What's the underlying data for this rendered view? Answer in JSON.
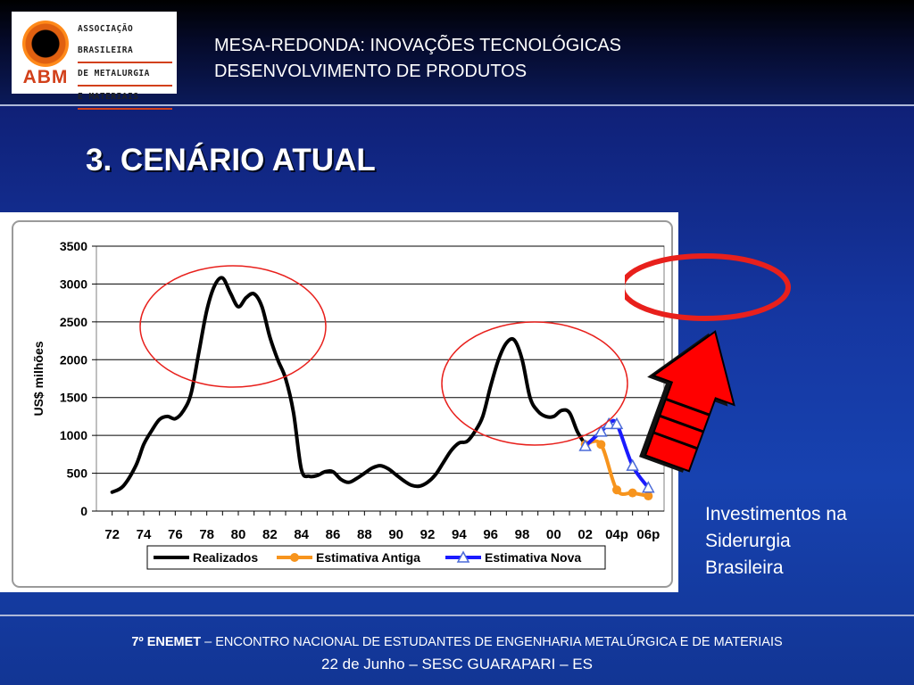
{
  "logo": {
    "abm": "ABM",
    "line1": "ASSOCIAÇÃO BRASILEIRA",
    "line2": "DE METALURGIA",
    "line3": "E MATERIAIS"
  },
  "header": {
    "line1": "MESA-REDONDA: INOVAÇÕES TECNOLÓGICAS",
    "line2": "DESENVOLVIMENTO DE PRODUTOS"
  },
  "section_title": "3. CENÁRIO ATUAL",
  "side_note": [
    "Investimentos na",
    "Siderurgia",
    "Brasileira"
  ],
  "footer": {
    "event_bold": "7º ENEMET",
    "event_rest": " – ENCONTRO NACIONAL DE ESTUDANTES DE ENGENHARIA METALÚRGICA E DE MATERIAIS",
    "line2": "22 de Junho – SESC GUARAPARI – ES"
  },
  "colors": {
    "realizados": "#000000",
    "estimativa_antiga": "#f7941d",
    "estimativa_nova": "#1a1aff",
    "highlight_ellipse": "#e8201c",
    "arrow": "#ff0000"
  },
  "chart_data": {
    "type": "line",
    "title": "",
    "xlabel": "",
    "ylabel": "US$ milhões",
    "ylim": [
      0,
      3500
    ],
    "yticks": [
      0,
      500,
      1000,
      1500,
      2000,
      2500,
      3000,
      3500
    ],
    "xticks": [
      "72",
      "74",
      "76",
      "78",
      "80",
      "82",
      "84",
      "86",
      "88",
      "90",
      "92",
      "94",
      "96",
      "98",
      "00",
      "02",
      "04p",
      "06p"
    ],
    "grid": true,
    "legend_position": "bottom",
    "series": [
      {
        "name": "Realizados",
        "x": [
          1972,
          1972.7,
          1973.5,
          1974,
          1974.5,
          1975,
          1975.5,
          1976,
          1976.5,
          1977,
          1977.5,
          1978,
          1978.5,
          1979,
          1979.5,
          1980,
          1980.5,
          1981,
          1981.5,
          1982,
          1982.5,
          1983,
          1983.5,
          1984,
          1984.5,
          1985,
          1985.5,
          1986,
          1986.5,
          1987,
          1987.5,
          1988,
          1988.5,
          1989,
          1989.5,
          1990,
          1990.5,
          1991,
          1991.5,
          1992,
          1992.5,
          1993,
          1993.5,
          1994,
          1994.5,
          1995,
          1995.5,
          1996,
          1996.5,
          1997,
          1997.5,
          1998,
          1998.5,
          1999,
          1999.5,
          2000,
          2000.5,
          2001,
          2001.5,
          2002
        ],
        "values": [
          250,
          330,
          600,
          880,
          1060,
          1210,
          1250,
          1220,
          1320,
          1550,
          2100,
          2650,
          2980,
          3080,
          2880,
          2700,
          2820,
          2870,
          2700,
          2300,
          2000,
          1750,
          1300,
          550,
          460,
          470,
          520,
          520,
          420,
          380,
          430,
          500,
          570,
          600,
          560,
          480,
          400,
          340,
          330,
          380,
          480,
          640,
          800,
          900,
          920,
          1050,
          1250,
          1650,
          2000,
          2220,
          2260,
          2000,
          1500,
          1320,
          1250,
          1250,
          1330,
          1300,
          1050,
          880
        ]
      },
      {
        "name": "Estimativa Antiga",
        "x": [
          2002,
          2003,
          2004,
          2005,
          2006
        ],
        "values": [
          880,
          880,
          280,
          240,
          200
        ]
      },
      {
        "name": "Estimativa Nova",
        "x": [
          2002,
          2003,
          2003.5,
          2004,
          2005,
          2006
        ],
        "values": [
          860,
          1050,
          1150,
          1150,
          600,
          310
        ]
      }
    ]
  }
}
